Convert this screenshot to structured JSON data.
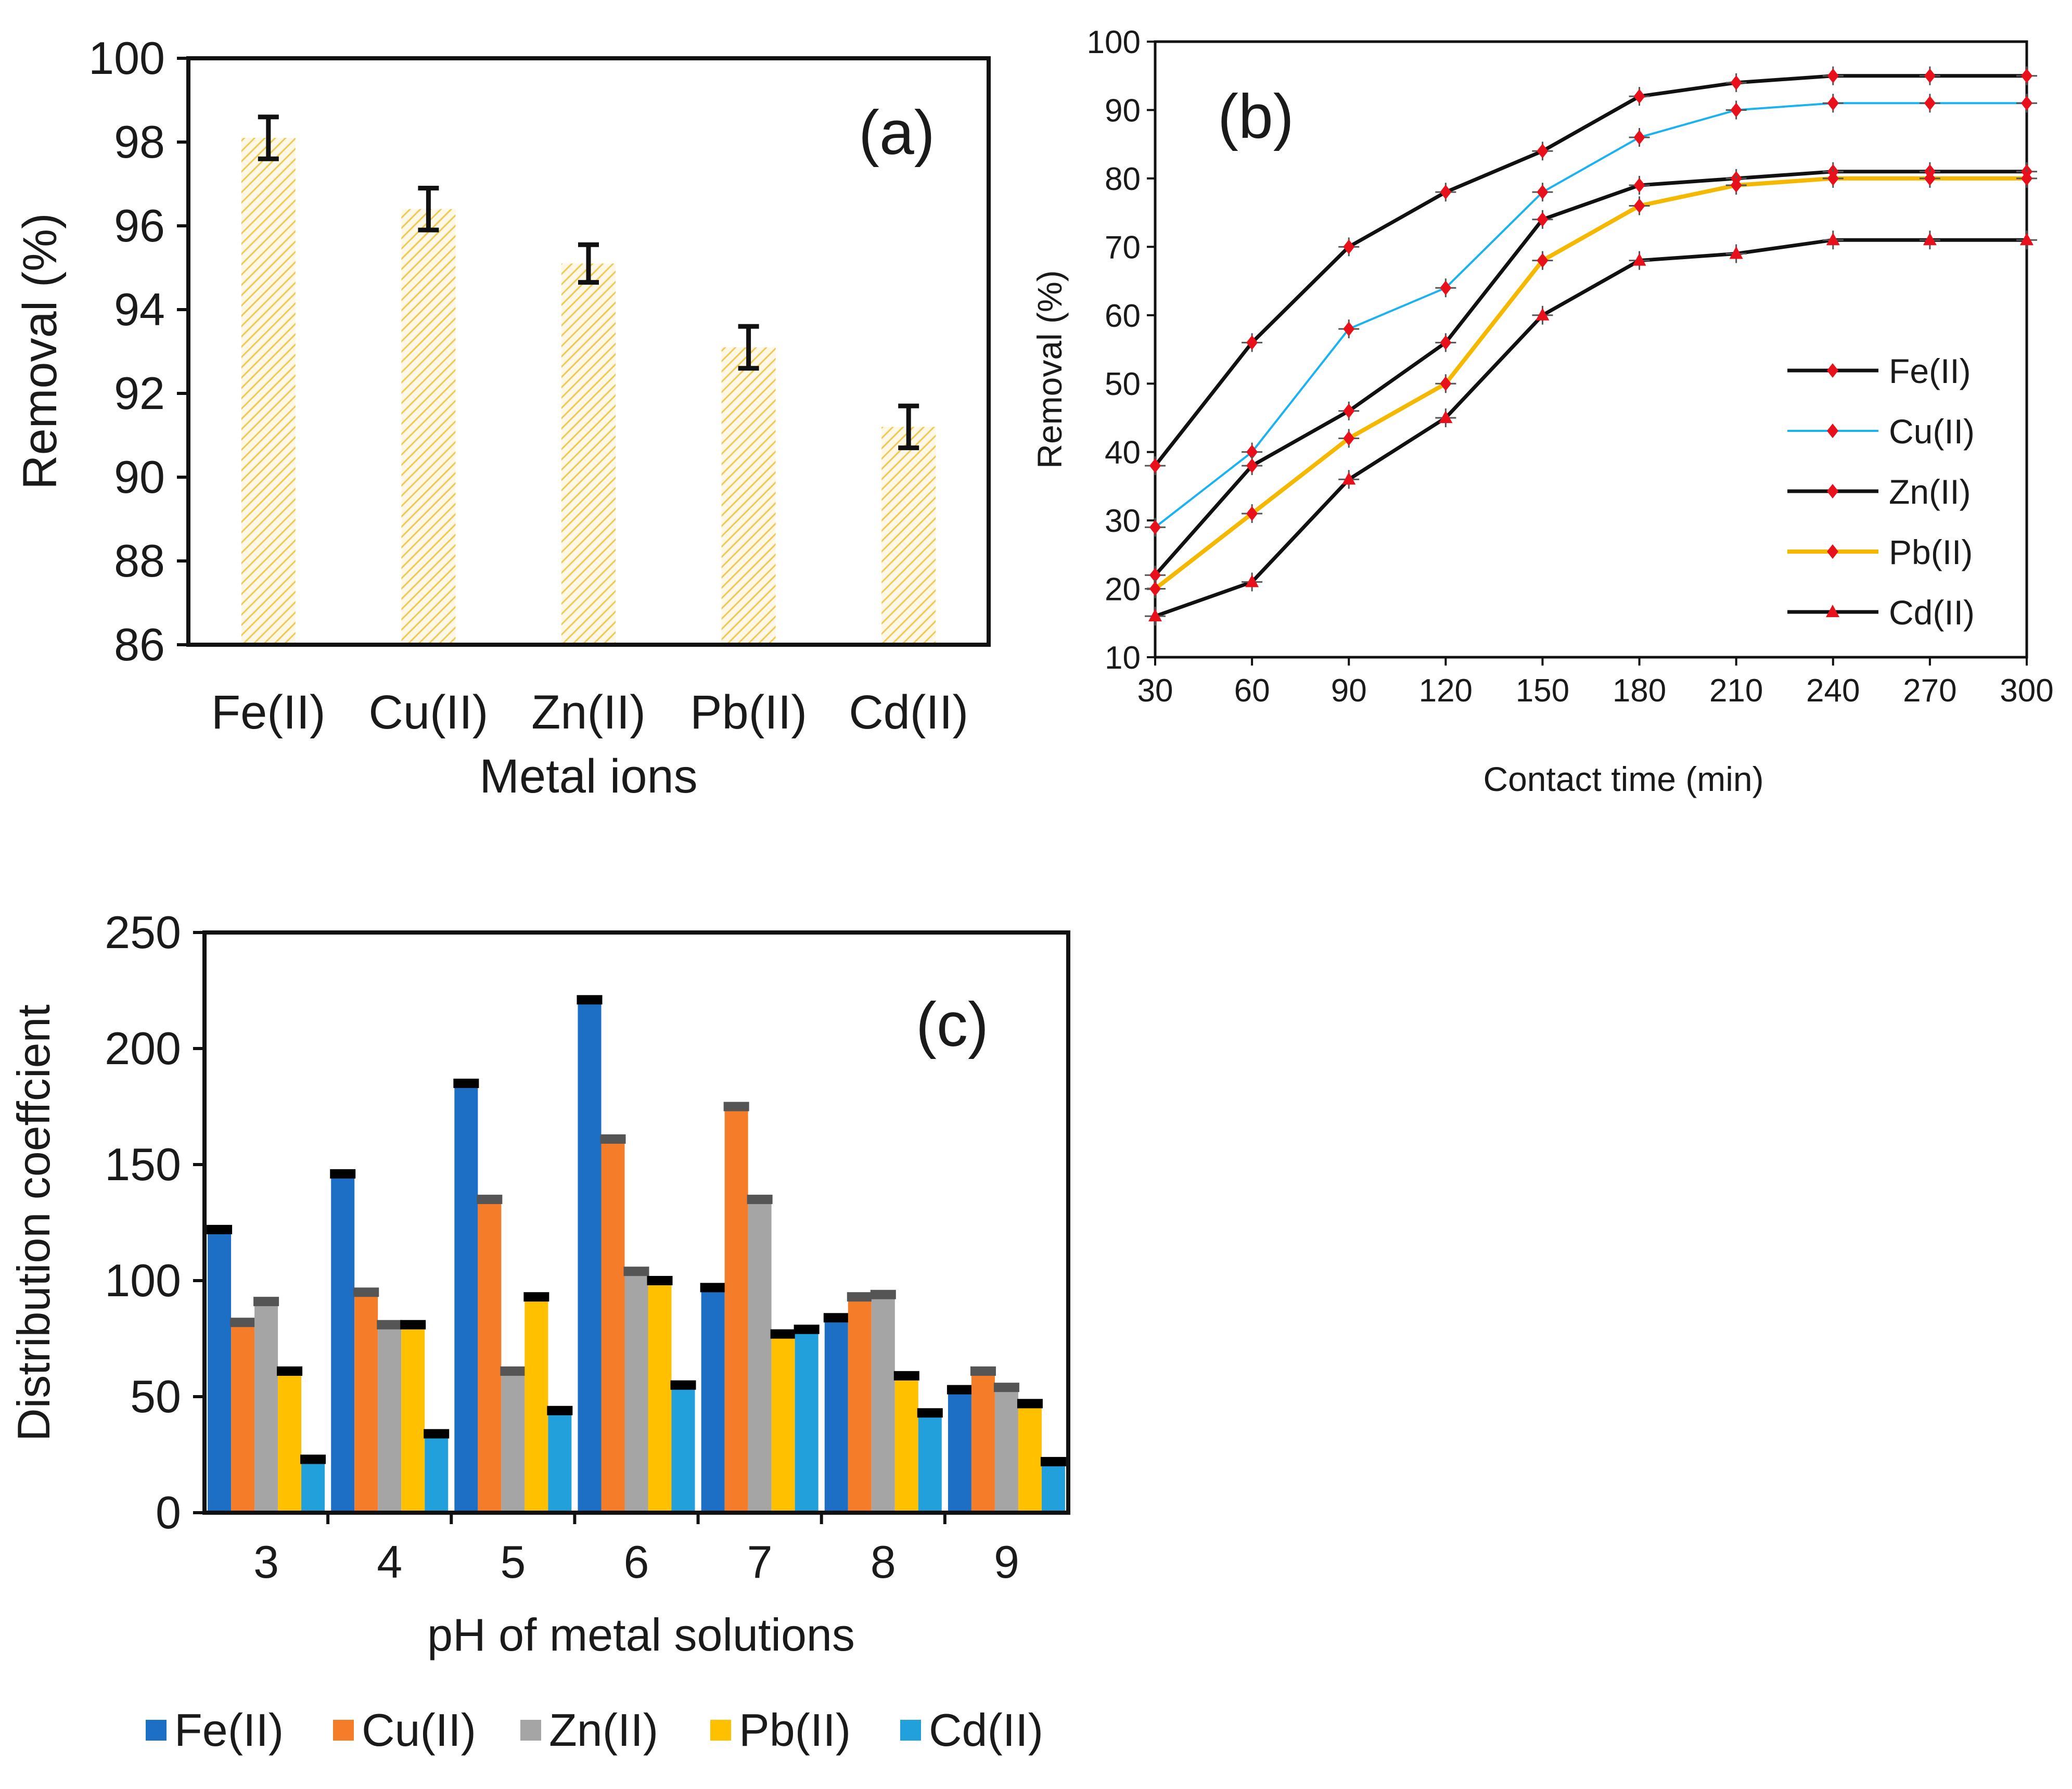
{
  "chart_data": [
    {
      "panel": "(a)",
      "type": "bar",
      "xlabel": "Metal ions",
      "ylabel": "Removal (%)",
      "ylim": [
        86,
        100
      ],
      "yticks": [
        86,
        88,
        90,
        92,
        94,
        96,
        98,
        100
      ],
      "categories": [
        "Fe(II)",
        "Cu(II)",
        "Zn(II)",
        "Pb(II)",
        "Cd(II)"
      ],
      "values": [
        98.1,
        96.4,
        95.1,
        93.1,
        91.2
      ],
      "errors": [
        0.5,
        0.5,
        0.45,
        0.5,
        0.5
      ],
      "bar_color": "#f0c955",
      "grid": false
    },
    {
      "panel": "(b)",
      "type": "line",
      "xlabel": "Contact time (min)",
      "ylabel": "Removal (%)",
      "xlim": [
        30,
        300
      ],
      "ylim": [
        10,
        100
      ],
      "x": [
        30,
        60,
        90,
        120,
        150,
        180,
        210,
        240,
        270,
        300
      ],
      "yticks": [
        10,
        20,
        30,
        40,
        50,
        60,
        70,
        80,
        90,
        100
      ],
      "legend_position": "right",
      "series": [
        {
          "name": "Fe(II)",
          "color": "#111111",
          "marker": "diamond",
          "values": [
            38,
            56,
            70,
            78,
            84,
            92,
            94,
            95,
            95,
            95
          ]
        },
        {
          "name": "Cu(II)",
          "color": "#1ab2f0",
          "marker": "diamond",
          "values": [
            29,
            40,
            58,
            64,
            78,
            86,
            90,
            91,
            91,
            91
          ]
        },
        {
          "name": "Zn(II)",
          "color": "#111111",
          "marker": "diamond",
          "values": [
            22,
            38,
            46,
            56,
            74,
            79,
            80,
            81,
            81,
            81
          ]
        },
        {
          "name": "Pb(II)",
          "color": "#f5b800",
          "marker": "diamond",
          "values": [
            20,
            31,
            42,
            50,
            68,
            76,
            79,
            80,
            80,
            80
          ]
        },
        {
          "name": "Cd(II)",
          "color": "#111111",
          "marker": "triangle",
          "values": [
            16,
            21,
            36,
            45,
            60,
            68,
            69,
            71,
            71,
            71
          ]
        }
      ],
      "marker_color": "#e8101a"
    },
    {
      "panel": "(c)",
      "type": "bar",
      "xlabel": "pH of metal solutions",
      "ylabel": "Distribution coeffcient",
      "ylim": [
        0,
        250
      ],
      "yticks": [
        0,
        50,
        100,
        150,
        200,
        250
      ],
      "categories": [
        "3",
        "4",
        "5",
        "6",
        "7",
        "8",
        "9"
      ],
      "legend_position": "bottom",
      "series": [
        {
          "name": "Fe(II)",
          "color": "#1c6fc4",
          "values": [
            122,
            146,
            185,
            221,
            97,
            84,
            53
          ]
        },
        {
          "name": "Cu(II)",
          "color": "#f57d2a",
          "values": [
            82,
            95,
            135,
            161,
            175,
            93,
            61
          ]
        },
        {
          "name": "Zn(II)",
          "color": "#a5a5a5",
          "values": [
            91,
            81,
            61,
            104,
            135,
            94,
            54
          ]
        },
        {
          "name": "Pb(II)",
          "color": "#ffc000",
          "values": [
            61,
            81,
            93,
            100,
            77,
            59,
            47
          ]
        },
        {
          "name": "Cd(II)",
          "color": "#22a0dc",
          "values": [
            23,
            34,
            44,
            55,
            79,
            43,
            22
          ]
        }
      ],
      "grid": false
    }
  ]
}
